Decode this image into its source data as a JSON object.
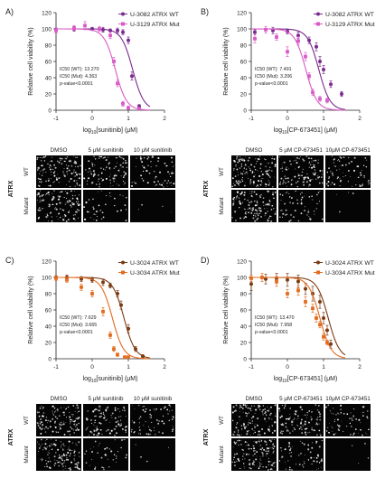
{
  "panels": [
    {
      "letter": "A)",
      "ylabel": "Relative cell viability (%)",
      "xlabel": "log10[sunitinib] (μM)",
      "xlabel_parts": [
        "log",
        "10",
        "[sunitinib] (μM)"
      ],
      "ic50_lines": [
        "IC50 (WT): 13.270",
        "IC50 (Mut): 4.363",
        "p-value<0.0001"
      ],
      "micro": {
        "columns": [
          "DMSO",
          "5 μM sunitinib",
          "10 μM sunitinib"
        ],
        "rows": [
          "WT",
          "Mutant"
        ],
        "group": "ATRX"
      }
    },
    {
      "letter": "B)",
      "ylabel": "Relative cell viability (%)",
      "xlabel": "log10[CP-673451] (μM)",
      "xlabel_parts": [
        "log",
        "10",
        "[CP-673451] (μM)"
      ],
      "ic50_lines": [
        "IC50 (WT): 7.491",
        "IC50 (Mut): 3.206",
        "p-value<0.0001"
      ],
      "micro": {
        "columns": [
          "DMSO",
          "5 μM CP-673451",
          "10μM CP-673451"
        ],
        "rows": [
          "WT",
          "Mutant"
        ],
        "group": "ATRX"
      }
    },
    {
      "letter": "C)",
      "ylabel": "Relative cell viability (%)",
      "xlabel": "log10[sunitinib] (μM)",
      "xlabel_parts": [
        "log",
        "10",
        "[sunitinib] (μM)"
      ],
      "ic50_lines": [
        "IC50 (WT): 7.629",
        "IC50 (Mut): 3.665",
        "p-value<0.0001"
      ],
      "micro": {
        "columns": [
          "DMSO",
          "5 μM sunitinib",
          "10 μM sunitinib"
        ],
        "rows": [
          "WT",
          "Mutant"
        ],
        "group": "ATRX"
      }
    },
    {
      "letter": "D)",
      "ylabel": "Relative cell viability (%)",
      "xlabel": "log10[CP-673451] (μM)",
      "xlabel_parts": [
        "log",
        "10",
        "[CP-673451] (μM)"
      ],
      "ic50_lines": [
        "IC50 (WT): 13.470",
        "IC50 (Mut): 7.958",
        "p-value<0.0001"
      ],
      "micro": {
        "columns": [
          "DMSO",
          "5 μM CP-673451",
          "10μM CP-673451"
        ],
        "rows": [
          "WT",
          "Mutant"
        ],
        "group": "ATRX"
      }
    }
  ],
  "chart_data": [
    {
      "type": "scatter",
      "panel": "A)",
      "xlabel": "log10[sunitinib] (μM)",
      "ylabel": "Relative cell viability (%)",
      "xlim": [
        -1,
        2
      ],
      "ylim": [
        0,
        120
      ],
      "xticks": [
        -1,
        0,
        1,
        2
      ],
      "yticks": [
        0,
        20,
        40,
        60,
        80,
        100,
        120
      ],
      "legend_position": "top-right",
      "series": [
        {
          "name": "U-3082 ATRX WT",
          "color": "#7a2b8e",
          "marker": "circle",
          "x": [
            -1,
            -0.5,
            0,
            0.3,
            0.5,
            0.7,
            0.85,
            1.0,
            1.1,
            1.3
          ],
          "y": [
            99,
            100,
            100,
            99,
            98,
            98,
            96,
            86,
            42,
            5
          ],
          "err": [
            2,
            3,
            2,
            3,
            2,
            3,
            3,
            4,
            5,
            2
          ],
          "ic50_log": 1.12
        },
        {
          "name": "U-3129 ATRX Mut",
          "color": "#d95ac6",
          "marker": "square",
          "x": [
            -1,
            -0.5,
            -0.2,
            0.2,
            0.5,
            0.6,
            0.7,
            0.85,
            1.0,
            1.3
          ],
          "y": [
            98,
            101,
            104,
            100,
            92,
            60,
            33,
            8,
            3,
            2
          ],
          "err": [
            3,
            3,
            5,
            3,
            4,
            5,
            4,
            3,
            2,
            1
          ],
          "ic50_log": 0.64
        }
      ]
    },
    {
      "type": "scatter",
      "panel": "B)",
      "xlabel": "log10[CP-673451] (μM)",
      "ylabel": "Relative cell viability (%)",
      "xlim": [
        -1,
        2
      ],
      "ylim": [
        0,
        120
      ],
      "xticks": [
        -1,
        0,
        1,
        2
      ],
      "yticks": [
        0,
        20,
        40,
        60,
        80,
        100,
        120
      ],
      "legend_position": "top-right",
      "series": [
        {
          "name": "U-3082 ATRX WT",
          "color": "#7a2b8e",
          "marker": "circle",
          "x": [
            -0.9,
            -0.4,
            0.0,
            0.3,
            0.6,
            0.8,
            0.9,
            1.0,
            1.2,
            1.5
          ],
          "y": [
            96,
            98,
            97,
            92,
            86,
            78,
            60,
            50,
            32,
            20
          ],
          "err": [
            3,
            4,
            3,
            4,
            4,
            5,
            6,
            5,
            4,
            3
          ],
          "ic50_log": 0.87
        },
        {
          "name": "U-3129 ATRX Mut",
          "color": "#d95ac6",
          "marker": "square",
          "x": [
            -0.9,
            -0.6,
            -0.3,
            0.0,
            0.3,
            0.5,
            0.6,
            0.7,
            0.9,
            1.1
          ],
          "y": [
            88,
            99,
            90,
            72,
            85,
            66,
            42,
            22,
            14,
            12
          ],
          "err": [
            5,
            4,
            4,
            6,
            5,
            5,
            4,
            4,
            3,
            3
          ],
          "ic50_log": 0.51
        }
      ]
    },
    {
      "type": "scatter",
      "panel": "C)",
      "xlabel": "log10[sunitinib] (μM)",
      "ylabel": "Relative cell viability (%)",
      "xlim": [
        -1,
        2
      ],
      "ylim": [
        0,
        120
      ],
      "xticks": [
        -1,
        0,
        1,
        2
      ],
      "yticks": [
        0,
        20,
        40,
        60,
        80,
        100,
        120
      ],
      "legend_position": "top-right",
      "series": [
        {
          "name": "U-3024 ATRX WT",
          "color": "#7a3a14",
          "marker": "circle",
          "x": [
            -1,
            -0.7,
            -0.3,
            0.0,
            0.3,
            0.5,
            0.7,
            0.8,
            1.0,
            1.2,
            1.4
          ],
          "y": [
            100,
            100,
            98,
            97,
            94,
            90,
            80,
            66,
            37,
            12,
            3
          ],
          "err": [
            2,
            3,
            3,
            3,
            4,
            3,
            4,
            5,
            5,
            3,
            2
          ],
          "ic50_log": 0.88
        },
        {
          "name": "U-3034 ATRX Mut",
          "color": "#e36b1e",
          "marker": "square",
          "x": [
            -1,
            -0.7,
            -0.3,
            0.0,
            0.3,
            0.5,
            0.6,
            0.7,
            0.9,
            1.0
          ],
          "y": [
            99,
            97,
            88,
            80,
            58,
            29,
            12,
            5,
            2,
            2
          ],
          "err": [
            3,
            3,
            4,
            4,
            5,
            4,
            3,
            2,
            1,
            1
          ],
          "ic50_log": 0.56
        }
      ]
    },
    {
      "type": "scatter",
      "panel": "D)",
      "xlabel": "log10[CP-673451] (μM)",
      "ylabel": "Relative cell viability (%)",
      "xlim": [
        -1,
        2
      ],
      "ylim": [
        0,
        120
      ],
      "xticks": [
        -1,
        0,
        1,
        2
      ],
      "yticks": [
        0,
        20,
        40,
        60,
        80,
        100,
        120
      ],
      "legend_position": "top-right",
      "series": [
        {
          "name": "U-3024 ATRX WT",
          "color": "#7a3a14",
          "marker": "circle",
          "x": [
            -1,
            -0.6,
            -0.3,
            0.0,
            0.3,
            0.5,
            0.7,
            0.9,
            1.0,
            1.1,
            1.2
          ],
          "y": [
            92,
            98,
            99,
            97,
            95,
            86,
            80,
            70,
            50,
            35,
            18
          ],
          "err": [
            8,
            6,
            6,
            8,
            8,
            7,
            9,
            8,
            7,
            6,
            5
          ],
          "ic50_log": 1.13
        },
        {
          "name": "U-3034 ATRX Mut",
          "color": "#e36b1e",
          "marker": "square",
          "x": [
            -1,
            -0.7,
            -0.3,
            0.0,
            0.3,
            0.5,
            0.7,
            0.8,
            0.9,
            1.0,
            1.1
          ],
          "y": [
            99,
            100,
            95,
            80,
            84,
            70,
            62,
            50,
            42,
            27,
            20
          ],
          "err": [
            4,
            5,
            6,
            5,
            6,
            6,
            5,
            5,
            4,
            4,
            3
          ],
          "ic50_log": 0.9
        }
      ]
    }
  ]
}
